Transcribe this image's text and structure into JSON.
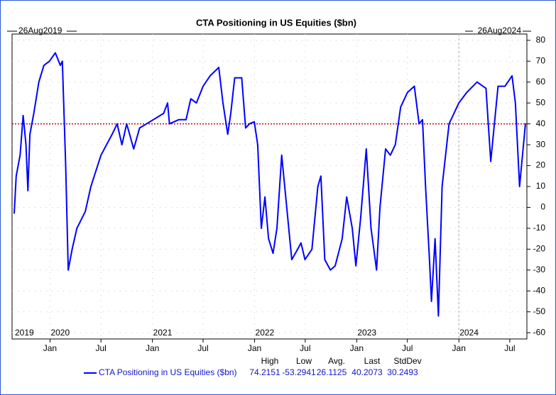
{
  "chart_data": {
    "type": "line",
    "title": "CTA Positioning in US Equities ($bn)",
    "start_label": "26Aug2019",
    "end_label": "26Aug2024",
    "x": [
      "2019-08-26",
      "2019-09-02",
      "2019-09-16",
      "2019-09-27",
      "2019-10-07",
      "2019-10-14",
      "2019-10-21",
      "2019-11-04",
      "2019-11-22",
      "2019-12-10",
      "2019-12-30",
      "2020-01-20",
      "2020-02-07",
      "2020-02-14",
      "2020-02-26",
      "2020-03-06",
      "2020-03-20",
      "2020-04-06",
      "2020-05-06",
      "2020-05-26",
      "2020-07-01",
      "2020-08-10",
      "2020-08-28",
      "2020-09-14",
      "2020-10-01",
      "2020-10-26",
      "2020-11-16",
      "2021-01-04",
      "2021-02-10",
      "2021-02-24",
      "2021-03-03",
      "2021-04-05",
      "2021-05-01",
      "2021-05-18",
      "2021-06-07",
      "2021-07-01",
      "2021-07-26",
      "2021-08-26",
      "2021-09-10",
      "2021-09-27",
      "2021-10-08",
      "2021-10-22",
      "2021-11-16",
      "2021-11-30",
      "2021-12-14",
      "2021-12-31",
      "2022-01-12",
      "2022-01-25",
      "2022-02-07",
      "2022-02-20",
      "2022-03-08",
      "2022-03-22",
      "2022-04-08",
      "2022-04-26",
      "2022-05-14",
      "2022-06-04",
      "2022-06-16",
      "2022-06-30",
      "2022-07-25",
      "2022-08-15",
      "2022-08-26",
      "2022-09-09",
      "2022-09-29",
      "2022-10-16",
      "2022-11-10",
      "2022-11-26",
      "2022-12-16",
      "2022-12-29",
      "2023-01-15",
      "2023-02-04",
      "2023-02-21",
      "2023-03-13",
      "2023-03-25",
      "2023-04-14",
      "2023-05-01",
      "2023-05-19",
      "2023-06-07",
      "2023-07-01",
      "2023-07-26",
      "2023-08-12",
      "2023-08-24",
      "2023-09-04",
      "2023-09-18",
      "2023-09-25",
      "2023-10-08",
      "2023-10-20",
      "2023-11-02",
      "2023-11-27",
      "2024-01-01",
      "2024-01-29",
      "2024-03-06",
      "2024-04-07",
      "2024-04-24",
      "2024-05-20",
      "2024-06-14",
      "2024-07-09",
      "2024-07-21",
      "2024-08-05",
      "2024-08-26"
    ],
    "series": [
      {
        "name": "CTA Positioning in US Equities ($bn)",
        "color": "#0000ff",
        "values": [
          -3,
          15,
          25,
          44,
          30,
          8,
          35,
          45,
          60,
          68,
          70,
          74,
          68,
          70,
          20,
          -30,
          -20,
          -10,
          -2,
          10,
          25,
          35,
          40,
          30,
          40,
          28,
          38,
          42,
          45,
          50,
          40,
          42,
          42,
          52,
          50,
          58,
          63,
          67,
          50,
          35,
          45,
          62,
          62,
          38,
          40,
          41,
          30,
          -10,
          5,
          -15,
          -22,
          -10,
          25,
          0,
          -25,
          -20,
          -17,
          -25,
          -20,
          10,
          15,
          -25,
          -30,
          -28,
          -15,
          5,
          -10,
          -28,
          -5,
          28,
          -10,
          -30,
          0,
          28,
          25,
          30,
          48,
          55,
          58,
          40,
          42,
          10,
          -25,
          -45,
          -15,
          -52,
          10,
          40,
          50,
          55,
          60,
          57,
          22,
          58,
          58,
          63,
          50,
          10,
          40.2073
        ]
      }
    ],
    "xlim": [
      "2019-08-26",
      "2024-08-26"
    ],
    "xticks": [
      {
        "value": "2020-01-01",
        "label": "Jan"
      },
      {
        "value": "2020-07-01",
        "label": "Jul"
      },
      {
        "value": "2021-01-01",
        "label": "Jan"
      },
      {
        "value": "2021-07-01",
        "label": "Jul"
      },
      {
        "value": "2022-01-01",
        "label": "Jan"
      },
      {
        "value": "2022-07-01",
        "label": "Jul"
      },
      {
        "value": "2023-01-01",
        "label": "Jan"
      },
      {
        "value": "2023-07-01",
        "label": "Jul"
      },
      {
        "value": "2024-01-01",
        "label": "Jan"
      },
      {
        "value": "2024-07-01",
        "label": "Jul"
      }
    ],
    "year_labels": [
      {
        "value": "2019-08-26",
        "label": "2019"
      },
      {
        "value": "2020-01-01",
        "label": "2020"
      },
      {
        "value": "2021-01-01",
        "label": "2021"
      },
      {
        "value": "2022-01-01",
        "label": "2022"
      },
      {
        "value": "2023-01-01",
        "label": "2023"
      },
      {
        "value": "2024-01-01",
        "label": "2024"
      }
    ],
    "ylim": [
      -63,
      83
    ],
    "yticks": [
      80,
      70,
      60,
      50,
      40,
      30,
      20,
      10,
      0,
      -10,
      -20,
      -30,
      -40,
      -50,
      -60
    ],
    "hline": 40,
    "vline": "2024-01-01",
    "grid": true,
    "stats": {
      "labels": [
        "High",
        "Low",
        "Avg.",
        "Last",
        "StdDev"
      ],
      "values": [
        74.2151,
        -53.2941,
        26.1125,
        40.2073,
        30.2493
      ]
    }
  }
}
